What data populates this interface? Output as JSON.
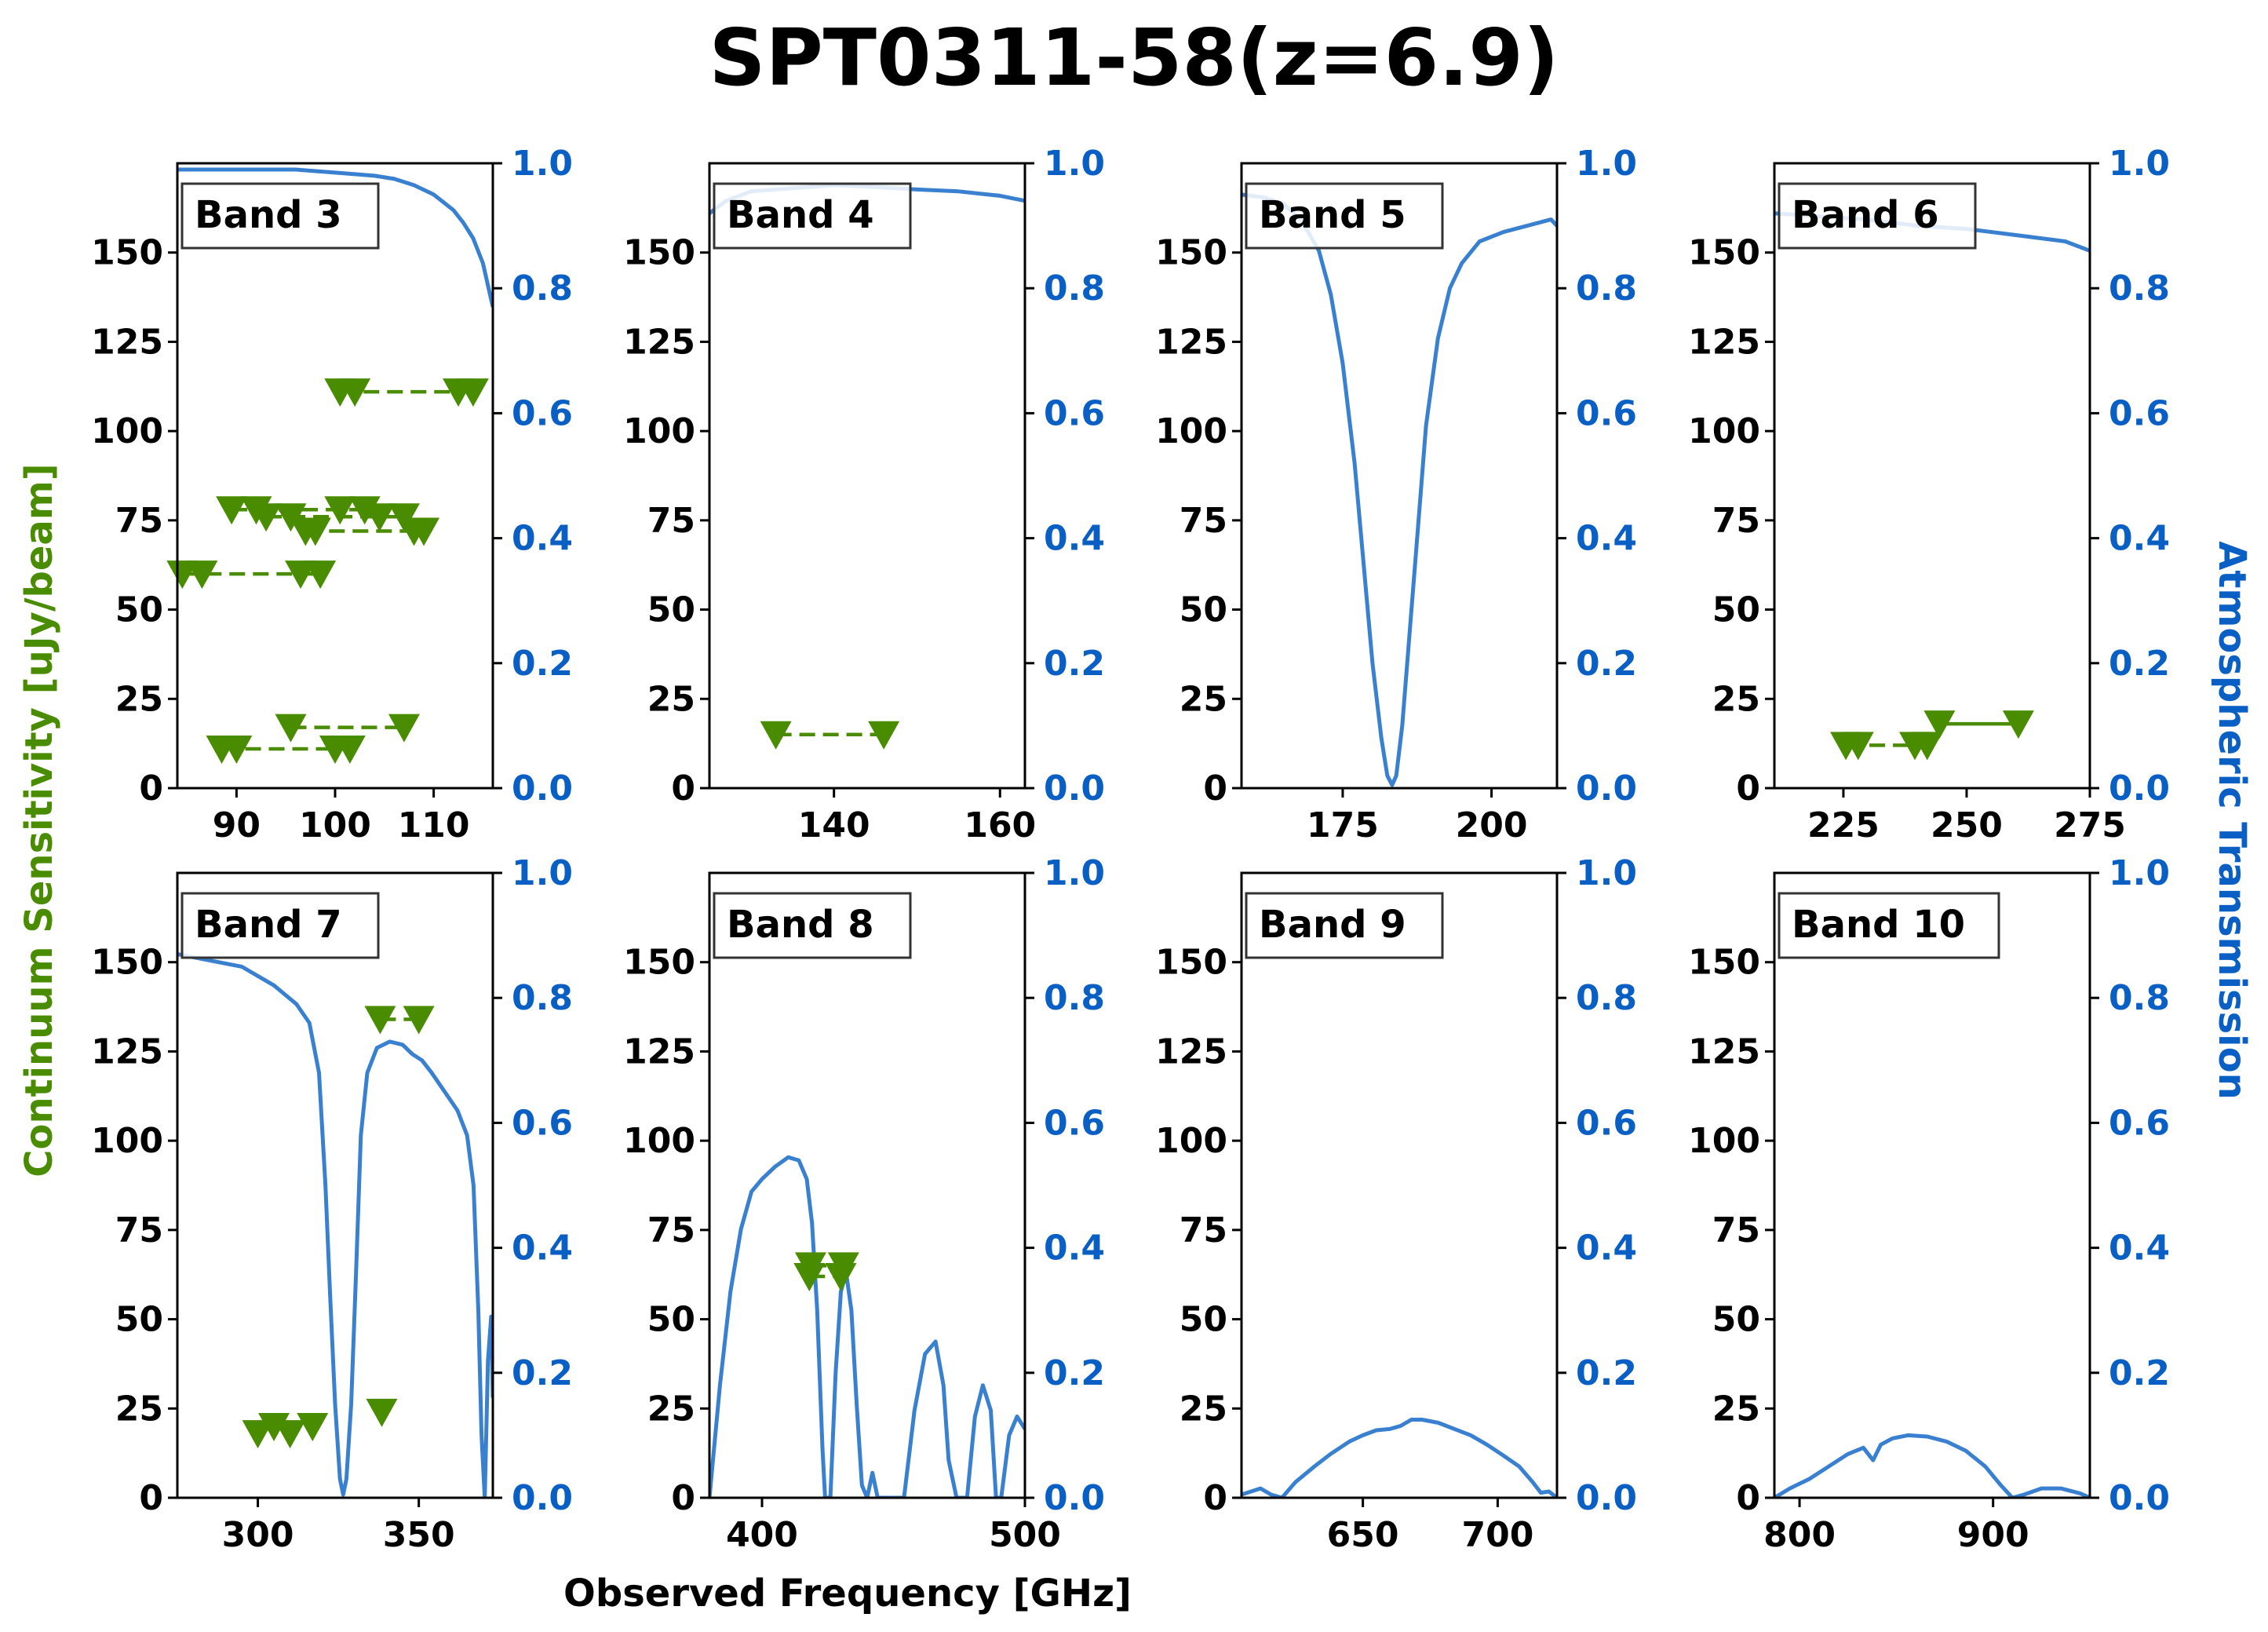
{
  "title": "SPT0311-58(z=6.9)",
  "colors": {
    "sensitivity": "#4a8c00",
    "transmission": "#3a80d0",
    "right_axis_text": "#0a5fc4",
    "frame": "#000000"
  },
  "chart_data": {
    "type": "scatter",
    "xlabel": "Observed Frequency [GHz]",
    "ylabel_left": "Continuum Sensitivity [uJy/beam]",
    "ylabel_right": "Atmospheric Transmission",
    "ylim_left": [
      0,
      175
    ],
    "ylim_right": [
      0,
      1.0
    ],
    "yticks_left": [
      0,
      25,
      50,
      75,
      100,
      125,
      150
    ],
    "yticks_right": [
      0.0,
      0.2,
      0.4,
      0.6,
      0.8,
      1.0
    ],
    "yticklabels_right": [
      "0.0",
      "0.2",
      "0.4",
      "0.6",
      "0.8",
      "1.0"
    ],
    "panels": [
      {
        "label": "Band 3",
        "xlim": [
          84,
          116
        ],
        "xticks": [
          90,
          100,
          110
        ],
        "transmission": [
          [
            84,
            0.99
          ],
          [
            88,
            0.99
          ],
          [
            92,
            0.99
          ],
          [
            96,
            0.99
          ],
          [
            100,
            0.985
          ],
          [
            104,
            0.98
          ],
          [
            106,
            0.975
          ],
          [
            108,
            0.965
          ],
          [
            110,
            0.95
          ],
          [
            112,
            0.925
          ],
          [
            113,
            0.905
          ],
          [
            114,
            0.88
          ],
          [
            115,
            0.84
          ],
          [
            116,
            0.77
          ]
        ],
        "sensitivity": [
          {
            "x": [
              84.5,
              86.5
            ],
            "y": 60,
            "style": "dashed"
          },
          {
            "x": [
              96.5,
              98.5
            ],
            "y": 60,
            "style": "dashed"
          },
          {
            "x": [
              89.5,
              92.0
            ],
            "y": 78,
            "style": "dashed"
          },
          {
            "x": [
              100.5,
              103.0
            ],
            "y": 78,
            "style": "dashed"
          },
          {
            "x": [
              93.0,
              95.5
            ],
            "y": 76,
            "style": "dashed"
          },
          {
            "x": [
              104.5,
              107.0
            ],
            "y": 76,
            "style": "dashed"
          },
          {
            "x": [
              97.0,
              98.0
            ],
            "y": 72,
            "style": "dashed"
          },
          {
            "x": [
              108.0,
              109.0
            ],
            "y": 72,
            "style": "dashed"
          },
          {
            "x": [
              100.5,
              102.0
            ],
            "y": 111,
            "style": "dashed"
          },
          {
            "x": [
              112.5,
              114.0
            ],
            "y": 111,
            "style": "dashed"
          },
          {
            "x": [
              88.5,
              90.0
            ],
            "y": 11,
            "style": "dashed"
          },
          {
            "x": [
              100.0,
              101.5
            ],
            "y": 11,
            "style": "dashed"
          },
          {
            "x": [
              95.5
            ],
            "y": 17,
            "style": "dashed"
          },
          {
            "x": [
              107.0
            ],
            "y": 17,
            "style": "dashed"
          }
        ]
      },
      {
        "label": "Band 4",
        "xlim": [
          125,
          163
        ],
        "xticks": [
          140,
          160
        ],
        "transmission": [
          [
            125,
            0.92
          ],
          [
            127,
            0.94
          ],
          [
            130,
            0.955
          ],
          [
            135,
            0.96
          ],
          [
            140,
            0.965
          ],
          [
            145,
            0.962
          ],
          [
            150,
            0.958
          ],
          [
            155,
            0.955
          ],
          [
            160,
            0.948
          ],
          [
            163,
            0.94
          ]
        ],
        "sensitivity": [
          {
            "x": [
              133
            ],
            "y": 15,
            "style": "dashed"
          },
          {
            "x": [
              146
            ],
            "y": 15,
            "style": "dashed"
          }
        ]
      },
      {
        "label": "Band 5",
        "xlim": [
          158,
          211
        ],
        "xticks": [
          175,
          200
        ],
        "transmission": [
          [
            158,
            0.95
          ],
          [
            162,
            0.945
          ],
          [
            165,
            0.935
          ],
          [
            168,
            0.91
          ],
          [
            171,
            0.86
          ],
          [
            173,
            0.79
          ],
          [
            175,
            0.68
          ],
          [
            177,
            0.52
          ],
          [
            178.5,
            0.36
          ],
          [
            180,
            0.2
          ],
          [
            181.5,
            0.08
          ],
          [
            182.5,
            0.02
          ],
          [
            183.3,
            0.005
          ],
          [
            184,
            0.02
          ],
          [
            185,
            0.1
          ],
          [
            186,
            0.22
          ],
          [
            187.5,
            0.4
          ],
          [
            189,
            0.58
          ],
          [
            191,
            0.72
          ],
          [
            193,
            0.8
          ],
          [
            195,
            0.84
          ],
          [
            198,
            0.875
          ],
          [
            202,
            0.89
          ],
          [
            206,
            0.9
          ],
          [
            210,
            0.91
          ],
          [
            211,
            0.9
          ]
        ],
        "sensitivity": []
      },
      {
        "label": "Band 6",
        "xlim": [
          211,
          275
        ],
        "xticks": [
          225,
          250,
          275
        ],
        "transmission": [
          [
            211,
            0.92
          ],
          [
            220,
            0.915
          ],
          [
            230,
            0.91
          ],
          [
            240,
            0.9
          ],
          [
            250,
            0.895
          ],
          [
            260,
            0.885
          ],
          [
            270,
            0.875
          ],
          [
            275,
            0.86
          ]
        ],
        "sensitivity": [
          {
            "x": [
              225.5,
              228
            ],
            "y": 12,
            "style": "dashed"
          },
          {
            "x": [
              239.5,
              242
            ],
            "y": 12,
            "style": "dashed"
          },
          {
            "x": [
              244.5
            ],
            "y": 18,
            "style": "solid"
          },
          {
            "x": [
              260.5
            ],
            "y": 18,
            "style": "solid"
          }
        ]
      },
      {
        "label": "Band 7",
        "xlim": [
          275,
          373
        ],
        "xticks": [
          300,
          350
        ],
        "transmission": [
          [
            275,
            0.87
          ],
          [
            285,
            0.86
          ],
          [
            295,
            0.85
          ],
          [
            305,
            0.82
          ],
          [
            312,
            0.79
          ],
          [
            316,
            0.76
          ],
          [
            319,
            0.68
          ],
          [
            321,
            0.5
          ],
          [
            322.5,
            0.32
          ],
          [
            324,
            0.15
          ],
          [
            325.5,
            0.03
          ],
          [
            326.5,
            0.005
          ],
          [
            327.5,
            0.03
          ],
          [
            329,
            0.15
          ],
          [
            330.5,
            0.36
          ],
          [
            332,
            0.58
          ],
          [
            334,
            0.68
          ],
          [
            337,
            0.72
          ],
          [
            341,
            0.73
          ],
          [
            345,
            0.725
          ],
          [
            348,
            0.71
          ],
          [
            351,
            0.7
          ],
          [
            354,
            0.68
          ],
          [
            358,
            0.65
          ],
          [
            362,
            0.62
          ],
          [
            365,
            0.58
          ],
          [
            367,
            0.5
          ],
          [
            368.5,
            0.3
          ],
          [
            369.5,
            0.1
          ],
          [
            370.5,
            0.0
          ],
          [
            371.5,
            0.22
          ],
          [
            372.5,
            0.29
          ],
          [
            373,
            0.16
          ]
        ],
        "sensitivity": [
          {
            "x": [
              300
            ],
            "y": 18,
            "style": "marker"
          },
          {
            "x": [
              305
            ],
            "y": 20,
            "style": "marker"
          },
          {
            "x": [
              310
            ],
            "y": 18,
            "style": "marker"
          },
          {
            "x": [
              317
            ],
            "y": 20,
            "style": "marker"
          },
          {
            "x": [
              338.5
            ],
            "y": 24,
            "style": "marker"
          },
          {
            "x": [
              338
            ],
            "y": 134,
            "style": "dashed"
          },
          {
            "x": [
              350
            ],
            "y": 134,
            "style": "dashed"
          }
        ]
      },
      {
        "label": "Band 8",
        "xlim": [
          380,
          500
        ],
        "xticks": [
          400,
          500
        ],
        "transmission": [
          [
            380,
            0.0
          ],
          [
            384,
            0.18
          ],
          [
            388,
            0.33
          ],
          [
            392,
            0.43
          ],
          [
            396,
            0.49
          ],
          [
            400,
            0.51
          ],
          [
            405,
            0.53
          ],
          [
            410,
            0.545
          ],
          [
            414,
            0.54
          ],
          [
            417,
            0.51
          ],
          [
            419,
            0.44
          ],
          [
            421,
            0.3
          ],
          [
            423,
            0.08
          ],
          [
            424,
            0.0
          ],
          [
            426,
            0.0
          ],
          [
            428,
            0.2
          ],
          [
            430,
            0.33
          ],
          [
            432,
            0.36
          ],
          [
            434,
            0.3
          ],
          [
            436,
            0.15
          ],
          [
            438,
            0.02
          ],
          [
            440,
            0.0
          ],
          [
            442,
            0.04
          ],
          [
            444,
            0.0
          ],
          [
            448,
            0.0
          ],
          [
            454,
            0.0
          ],
          [
            458,
            0.14
          ],
          [
            462,
            0.23
          ],
          [
            466,
            0.25
          ],
          [
            469,
            0.18
          ],
          [
            471,
            0.06
          ],
          [
            474,
            0.0
          ],
          [
            478,
            0.0
          ],
          [
            481,
            0.13
          ],
          [
            484,
            0.18
          ],
          [
            487,
            0.14
          ],
          [
            489,
            0.0
          ],
          [
            491,
            0.0
          ],
          [
            494,
            0.1
          ],
          [
            497,
            0.13
          ],
          [
            500,
            0.11
          ]
        ],
        "sensitivity": [
          {
            "x": [
              418
            ],
            "y": 62,
            "style": "dashed"
          },
          {
            "x": [
              430
            ],
            "y": 62,
            "style": "dashed"
          },
          {
            "x": [
              418.5
            ],
            "y": 65,
            "style": "dashed"
          },
          {
            "x": [
              431
            ],
            "y": 65,
            "style": "dashed"
          }
        ]
      },
      {
        "label": "Band 9",
        "xlim": [
          605,
          722
        ],
        "xticks": [
          650,
          700
        ],
        "transmission": [
          [
            605,
            0.005
          ],
          [
            612,
            0.015
          ],
          [
            616,
            0.005
          ],
          [
            620,
            0.0
          ],
          [
            625,
            0.025
          ],
          [
            632,
            0.05
          ],
          [
            638,
            0.07
          ],
          [
            645,
            0.09
          ],
          [
            650,
            0.1
          ],
          [
            655,
            0.108
          ],
          [
            660,
            0.11
          ],
          [
            664,
            0.115
          ],
          [
            668,
            0.125
          ],
          [
            672,
            0.125
          ],
          [
            678,
            0.12
          ],
          [
            684,
            0.11
          ],
          [
            690,
            0.1
          ],
          [
            696,
            0.085
          ],
          [
            702,
            0.068
          ],
          [
            708,
            0.05
          ],
          [
            713,
            0.025
          ],
          [
            716,
            0.008
          ],
          [
            719,
            0.01
          ],
          [
            722,
            0.0
          ]
        ],
        "sensitivity": []
      },
      {
        "label": "Band 10",
        "xlim": [
          787,
          950
        ],
        "xticks": [
          800,
          900
        ],
        "transmission": [
          [
            787,
            0.0
          ],
          [
            795,
            0.015
          ],
          [
            805,
            0.03
          ],
          [
            815,
            0.05
          ],
          [
            825,
            0.07
          ],
          [
            833,
            0.08
          ],
          [
            838,
            0.06
          ],
          [
            842,
            0.085
          ],
          [
            848,
            0.095
          ],
          [
            856,
            0.1
          ],
          [
            866,
            0.098
          ],
          [
            876,
            0.09
          ],
          [
            886,
            0.075
          ],
          [
            896,
            0.05
          ],
          [
            904,
            0.02
          ],
          [
            910,
            0.0
          ],
          [
            916,
            0.005
          ],
          [
            925,
            0.015
          ],
          [
            935,
            0.015
          ],
          [
            945,
            0.007
          ],
          [
            950,
            0.0
          ]
        ],
        "sensitivity": []
      }
    ]
  }
}
